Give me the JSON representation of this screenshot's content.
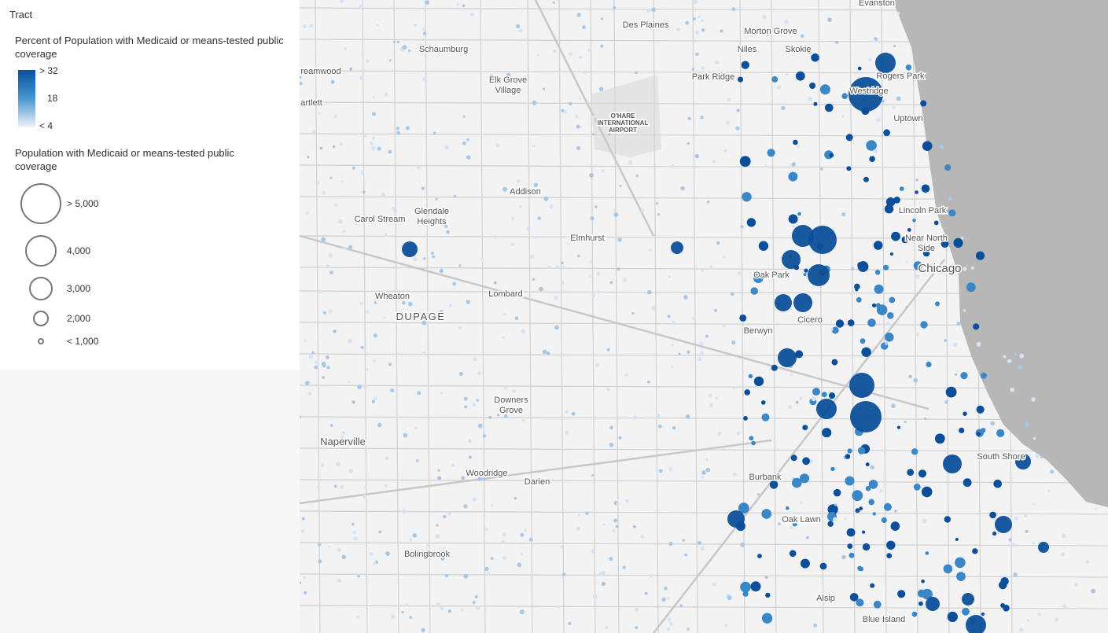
{
  "legend": {
    "layer": "Tract",
    "color_title": "Percent of Population with Medicaid or means-tested public coverage",
    "color_stops": [
      "> 32",
      "18",
      "< 4"
    ],
    "size_title": "Population with Medicaid or means-tested public coverage",
    "size_stops": [
      "> 5,000",
      "4,000",
      "3,000",
      "2,000",
      "< 1,000"
    ]
  },
  "map": {
    "labels": [
      "Evanston",
      "Des Plaines",
      "Morton Grove",
      "Schaumburg",
      "Niles",
      "Skokie",
      "reamwood",
      "Rogers Park",
      "Park Ridge",
      "Elk Grove",
      "Village",
      "Westridge",
      "artlett",
      "O'HARE",
      "INTERNATIONAL",
      "AIRPORT",
      "Uptown",
      "Addison",
      "Lincoln Park",
      "Glendale",
      "Heights",
      "Carol Stream",
      "Elmhurst",
      "Near North",
      "Side",
      "Chicago",
      "Oak Park",
      "Wheaton",
      "Lombard",
      "DUPAGE",
      "Cicero",
      "Berwyn",
      "Downers",
      "Grove",
      "Naperville",
      "South Shore",
      "Woodridge",
      "Darien",
      "Burbank",
      "Oak Lawn",
      "Bolingbrook",
      "Alsip",
      "Blue Island"
    ]
  }
}
